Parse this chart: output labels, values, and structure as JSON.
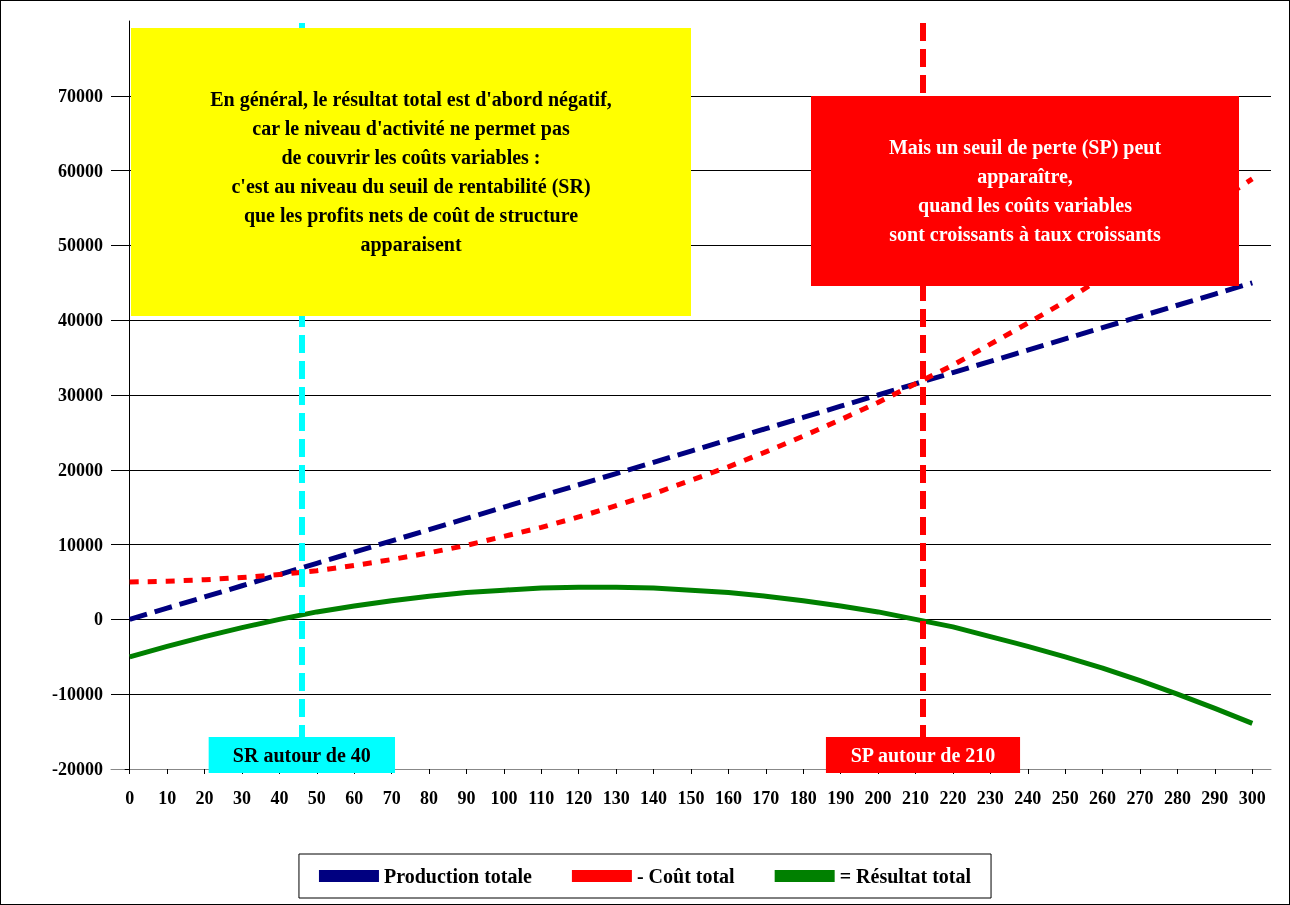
{
  "chart_data": {
    "type": "line",
    "x": [
      0,
      10,
      20,
      30,
      40,
      50,
      60,
      70,
      80,
      90,
      100,
      110,
      120,
      130,
      140,
      150,
      160,
      170,
      180,
      190,
      200,
      210,
      220,
      230,
      240,
      250,
      260,
      270,
      280,
      290,
      300
    ],
    "series": [
      {
        "name": "Production totale",
        "color": "#000080",
        "line_style": "dashed",
        "values": [
          0,
          1500,
          3000,
          4500,
          6000,
          7500,
          9000,
          10500,
          12000,
          13500,
          15000,
          16500,
          18000,
          19500,
          21000,
          22500,
          24000,
          25500,
          27000,
          28500,
          30000,
          31500,
          33000,
          34500,
          36000,
          37500,
          39000,
          40500,
          42000,
          43500,
          45000
        ]
      },
      {
        "name": "- Coût total",
        "color": "#ff0000",
        "line_style": "dotted",
        "values": [
          5000,
          5100,
          5300,
          5600,
          6000,
          6500,
          7200,
          8000,
          8900,
          9900,
          11100,
          12300,
          13700,
          15200,
          16800,
          18600,
          20400,
          22400,
          24500,
          26700,
          29000,
          31500,
          34000,
          36800,
          39600,
          42500,
          null,
          null,
          null,
          null,
          58900
        ]
      },
      {
        "name": "= Résultat total",
        "color": "#008000",
        "line_style": "solid",
        "values": [
          -5000,
          -3600,
          -2300,
          -1100,
          0,
          1000,
          1800,
          2500,
          3100,
          3600,
          3900,
          4200,
          4300,
          4300,
          4200,
          3900,
          3600,
          3100,
          2500,
          1800,
          1000,
          0,
          -1000,
          -2300,
          -3600,
          -5000,
          -6500,
          -8200,
          -10000,
          -11900,
          -13900
        ]
      }
    ],
    "xlim": [
      -5,
      305
    ],
    "xticks": [
      0,
      10,
      20,
      30,
      40,
      50,
      60,
      70,
      80,
      90,
      100,
      110,
      120,
      130,
      140,
      150,
      160,
      170,
      180,
      190,
      200,
      210,
      220,
      230,
      240,
      250,
      260,
      270,
      280,
      290,
      300
    ],
    "ylim": [
      -20000,
      80000
    ],
    "yticks": [
      -20000,
      -10000,
      0,
      10000,
      20000,
      30000,
      40000,
      50000,
      60000,
      70000
    ],
    "grid": "y",
    "legend": "bottom",
    "marker": "none",
    "ref_lines": [
      {
        "axis": "x",
        "value": 46,
        "label": "SR autour de 40",
        "color": "#00ffff",
        "line_style": "dashed"
      },
      {
        "axis": "x",
        "value": 212,
        "label": "SP autour de 210",
        "color": "#ff0000",
        "line_style": "dashed"
      }
    ],
    "annotations": [
      "En général, le résultat total est d'abord négatif,\ncar le niveau d'activité ne permet pas\nde couvrir les coûts variables :\nc'est au niveau du seuil de rentabilité (SR)\nque les profits nets de coût de structure\napparaisent",
      "Mais un seuil de perte (SP) peut\napparaître,\nquand les coûts variables\nsont croissants à taux croissants"
    ]
  }
}
